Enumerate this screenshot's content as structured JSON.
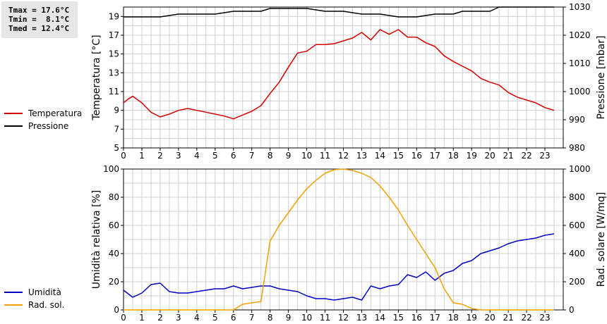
{
  "stats": {
    "tmax": "Tmax = 17.6°C",
    "tmin": "Tmin =  8.1°C",
    "tmed": "Tmed = 12.4°C"
  },
  "colors": {
    "temperature": "#d40000",
    "pressure": "#000000",
    "humidity": "#0000c0",
    "solar": "#f0a000",
    "grid": "#d0d0d0"
  },
  "chart_data": [
    {
      "type": "line",
      "ylabel": "Temperatura [°C]",
      "y2label": "Pressione [mbar]",
      "ylim": [
        5,
        20
      ],
      "y2lim": [
        980,
        1030
      ],
      "yticks": [
        5,
        7,
        9,
        11,
        13,
        15,
        17,
        19
      ],
      "y2ticks": [
        980,
        990,
        1000,
        1010,
        1020,
        1030
      ],
      "xlim": [
        0,
        24
      ],
      "xticks": [
        0,
        1,
        2,
        3,
        4,
        5,
        6,
        7,
        8,
        9,
        10,
        11,
        12,
        13,
        14,
        15,
        16,
        17,
        18,
        19,
        20,
        21,
        22,
        23
      ],
      "grid": true,
      "legend_position": "left",
      "series": [
        {
          "name": "Temperatura",
          "axis": "left",
          "x": [
            0,
            0.25,
            0.5,
            1,
            1.5,
            2,
            2.5,
            3,
            3.5,
            4,
            4.5,
            5,
            5.5,
            6,
            6.5,
            7,
            7.5,
            8,
            8.5,
            9,
            9.5,
            10,
            10.5,
            11,
            11.5,
            12,
            12.5,
            13,
            13.5,
            14,
            14.5,
            15,
            15.5,
            16,
            16.5,
            17,
            17.5,
            18,
            18.5,
            19,
            19.5,
            20,
            20.5,
            21,
            21.5,
            22,
            22.5,
            23,
            23.5
          ],
          "y": [
            9.8,
            10.2,
            10.5,
            9.8,
            8.8,
            8.3,
            8.6,
            9.0,
            9.2,
            9.0,
            8.8,
            8.6,
            8.4,
            8.1,
            8.5,
            8.9,
            9.5,
            10.8,
            12.0,
            13.6,
            15.1,
            15.3,
            16.0,
            16.0,
            16.1,
            16.4,
            16.7,
            17.3,
            16.5,
            17.6,
            17.1,
            17.6,
            16.8,
            16.8,
            16.2,
            15.8,
            14.8,
            14.2,
            13.7,
            13.2,
            12.4,
            12.0,
            11.7,
            10.9,
            10.4,
            10.1,
            9.8,
            9.3,
            9.0
          ]
        },
        {
          "name": "Pressione",
          "axis": "right",
          "x": [
            0,
            1,
            2,
            2.5,
            3,
            4,
            5,
            6,
            7,
            7.5,
            8,
            9,
            10,
            11,
            12,
            13,
            14,
            15,
            16,
            17,
            18,
            18.5,
            19,
            20,
            20.5,
            23.5
          ],
          "y": [
            1026.5,
            1026.5,
            1026.5,
            1027,
            1027.5,
            1027.5,
            1027.5,
            1028.5,
            1028.5,
            1028.5,
            1029.5,
            1029.5,
            1029.5,
            1028.5,
            1028.5,
            1027.5,
            1027.5,
            1026.5,
            1026.5,
            1027.5,
            1027.5,
            1028.5,
            1028.5,
            1028.5,
            1030,
            1030
          ]
        }
      ]
    },
    {
      "type": "line",
      "ylabel": "Umidità relativa [%]",
      "y2label": "Rad. solare [W/mq]",
      "ylim": [
        0,
        100
      ],
      "y2lim": [
        0,
        1000
      ],
      "yticks": [
        0,
        20,
        40,
        60,
        80,
        100
      ],
      "y2ticks": [
        0,
        200,
        400,
        600,
        800,
        1000
      ],
      "xlim": [
        0,
        24
      ],
      "xticks": [
        0,
        1,
        2,
        3,
        4,
        5,
        6,
        7,
        8,
        9,
        10,
        11,
        12,
        13,
        14,
        15,
        16,
        17,
        18,
        19,
        20,
        21,
        22,
        23
      ],
      "grid": true,
      "legend_position": "left",
      "series": [
        {
          "name": "Umidità",
          "axis": "left",
          "x": [
            0,
            0.5,
            1,
            1.5,
            2,
            2.5,
            3,
            3.5,
            4,
            4.5,
            5,
            5.5,
            6,
            6.5,
            7,
            7.5,
            8,
            8.5,
            9,
            9.5,
            10,
            10.5,
            11,
            11.5,
            12,
            12.5,
            13,
            13.5,
            14,
            14.5,
            15,
            15.5,
            16,
            16.5,
            17,
            17.5,
            18,
            18.5,
            19,
            19.5,
            20,
            20.5,
            21,
            21.5,
            22,
            22.5,
            23,
            23.5
          ],
          "y": [
            14,
            9,
            12,
            18,
            19,
            13,
            12,
            12,
            13,
            14,
            15,
            15,
            17,
            15,
            16,
            17,
            17,
            15,
            14,
            13,
            10,
            8,
            8,
            7,
            8,
            9,
            7,
            17,
            15,
            17,
            18,
            25,
            23,
            27,
            21,
            26,
            28,
            33,
            35,
            40,
            42,
            44,
            47,
            49,
            50,
            51,
            53,
            54
          ]
        },
        {
          "name": "Rad. sol.",
          "axis": "right",
          "x": [
            0,
            0.5,
            1,
            1.5,
            2,
            2.5,
            3,
            3.5,
            4,
            4.5,
            5,
            5.5,
            6,
            6.5,
            7,
            7.5,
            8,
            8.5,
            9,
            9.5,
            10,
            10.5,
            11,
            11.5,
            12,
            12.5,
            13,
            13.5,
            14,
            14.5,
            15,
            15.5,
            16,
            16.5,
            17,
            17.5,
            18,
            18.5,
            19,
            19.5,
            20,
            20.5,
            21,
            21.5,
            22,
            22.5,
            23,
            23.5
          ],
          "y": [
            0,
            0,
            0,
            0,
            0,
            0,
            0,
            0,
            0,
            0,
            0,
            0,
            0,
            40,
            50,
            60,
            490,
            600,
            690,
            780,
            860,
            920,
            970,
            995,
            1000,
            990,
            970,
            940,
            880,
            800,
            710,
            600,
            500,
            400,
            300,
            150,
            50,
            40,
            10,
            0,
            0,
            0,
            0,
            0,
            0,
            0,
            0,
            0
          ]
        }
      ]
    }
  ]
}
